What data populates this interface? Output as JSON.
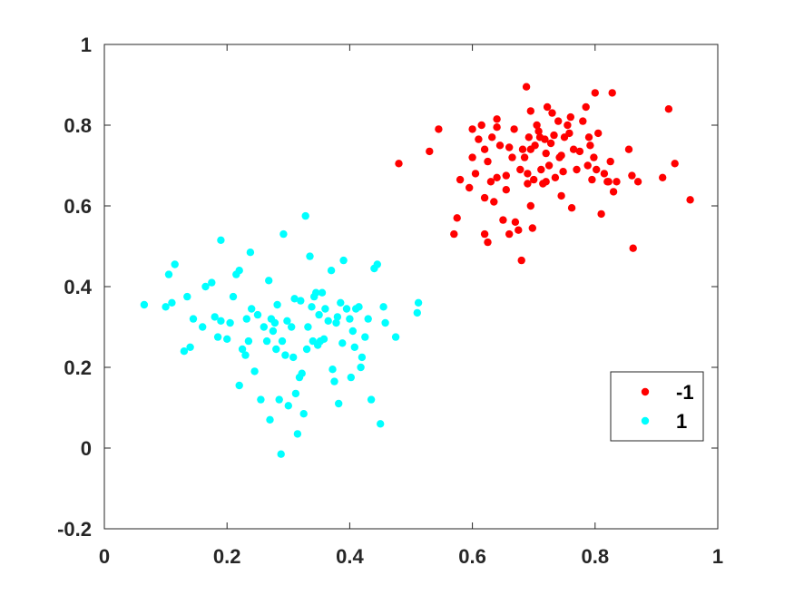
{
  "chart_data": {
    "type": "scatter",
    "xlim": [
      0,
      1
    ],
    "ylim": [
      -0.2,
      1
    ],
    "xticks": [
      "0",
      "0.2",
      "0.4",
      "0.6",
      "0.8",
      "1"
    ],
    "yticks": [
      "-0.2",
      "0",
      "0.2",
      "0.4",
      "0.6",
      "0.8",
      "1"
    ],
    "grid": false,
    "legend_position": "bottom-right",
    "series": [
      {
        "name": "-1",
        "color": "#ff0000",
        "points": [
          [
            0.48,
            0.705
          ],
          [
            0.53,
            0.735
          ],
          [
            0.545,
            0.79
          ],
          [
            0.57,
            0.53
          ],
          [
            0.575,
            0.57
          ],
          [
            0.58,
            0.665
          ],
          [
            0.595,
            0.645
          ],
          [
            0.6,
            0.72
          ],
          [
            0.6,
            0.79
          ],
          [
            0.605,
            0.68
          ],
          [
            0.61,
            0.765
          ],
          [
            0.615,
            0.8
          ],
          [
            0.62,
            0.74
          ],
          [
            0.62,
            0.62
          ],
          [
            0.62,
            0.53
          ],
          [
            0.625,
            0.51
          ],
          [
            0.625,
            0.71
          ],
          [
            0.63,
            0.66
          ],
          [
            0.632,
            0.77
          ],
          [
            0.635,
            0.61
          ],
          [
            0.64,
            0.795
          ],
          [
            0.64,
            0.815
          ],
          [
            0.645,
            0.75
          ],
          [
            0.65,
            0.565
          ],
          [
            0.655,
            0.675
          ],
          [
            0.66,
            0.745
          ],
          [
            0.66,
            0.53
          ],
          [
            0.665,
            0.72
          ],
          [
            0.668,
            0.79
          ],
          [
            0.67,
            0.56
          ],
          [
            0.675,
            0.54
          ],
          [
            0.678,
            0.69
          ],
          [
            0.68,
            0.465
          ],
          [
            0.682,
            0.74
          ],
          [
            0.685,
            0.72
          ],
          [
            0.688,
            0.895
          ],
          [
            0.69,
            0.68
          ],
          [
            0.69,
            0.655
          ],
          [
            0.692,
            0.77
          ],
          [
            0.695,
            0.835
          ],
          [
            0.695,
            0.6
          ],
          [
            0.698,
            0.545
          ],
          [
            0.7,
            0.665
          ],
          [
            0.702,
            0.75
          ],
          [
            0.705,
            0.8
          ],
          [
            0.708,
            0.785
          ],
          [
            0.71,
            0.77
          ],
          [
            0.712,
            0.69
          ],
          [
            0.715,
            0.655
          ],
          [
            0.718,
            0.765
          ],
          [
            0.72,
            0.66
          ],
          [
            0.722,
            0.845
          ],
          [
            0.725,
            0.7
          ],
          [
            0.728,
            0.755
          ],
          [
            0.73,
            0.83
          ],
          [
            0.733,
            0.775
          ],
          [
            0.735,
            0.67
          ],
          [
            0.74,
            0.81
          ],
          [
            0.742,
            0.72
          ],
          [
            0.745,
            0.725
          ],
          [
            0.748,
            0.685
          ],
          [
            0.75,
            0.77
          ],
          [
            0.755,
            0.8
          ],
          [
            0.758,
            0.78
          ],
          [
            0.76,
            0.82
          ],
          [
            0.762,
            0.595
          ],
          [
            0.765,
            0.74
          ],
          [
            0.77,
            0.69
          ],
          [
            0.775,
            0.735
          ],
          [
            0.78,
            0.81
          ],
          [
            0.785,
            0.845
          ],
          [
            0.788,
            0.7
          ],
          [
            0.79,
            0.77
          ],
          [
            0.792,
            0.75
          ],
          [
            0.795,
            0.665
          ],
          [
            0.798,
            0.72
          ],
          [
            0.8,
            0.88
          ],
          [
            0.802,
            0.69
          ],
          [
            0.805,
            0.78
          ],
          [
            0.81,
            0.58
          ],
          [
            0.815,
            0.68
          ],
          [
            0.82,
            0.66
          ],
          [
            0.822,
            0.66
          ],
          [
            0.825,
            0.71
          ],
          [
            0.828,
            0.88
          ],
          [
            0.83,
            0.635
          ],
          [
            0.835,
            0.66
          ],
          [
            0.855,
            0.74
          ],
          [
            0.86,
            0.675
          ],
          [
            0.862,
            0.495
          ],
          [
            0.87,
            0.66
          ],
          [
            0.91,
            0.67
          ],
          [
            0.92,
            0.84
          ],
          [
            0.93,
            0.705
          ],
          [
            0.955,
            0.615
          ],
          [
            0.64,
            0.67
          ],
          [
            0.72,
            0.73
          ],
          [
            0.695,
            0.74
          ],
          [
            0.655,
            0.64
          ],
          [
            0.745,
            0.625
          ]
        ]
      },
      {
        "name": "1",
        "color": "#00ffff",
        "points": [
          [
            0.065,
            0.355
          ],
          [
            0.1,
            0.35
          ],
          [
            0.105,
            0.43
          ],
          [
            0.11,
            0.36
          ],
          [
            0.115,
            0.455
          ],
          [
            0.13,
            0.24
          ],
          [
            0.135,
            0.375
          ],
          [
            0.14,
            0.25
          ],
          [
            0.145,
            0.32
          ],
          [
            0.16,
            0.3
          ],
          [
            0.165,
            0.4
          ],
          [
            0.175,
            0.41
          ],
          [
            0.18,
            0.325
          ],
          [
            0.185,
            0.275
          ],
          [
            0.19,
            0.515
          ],
          [
            0.19,
            0.315
          ],
          [
            0.2,
            0.27
          ],
          [
            0.205,
            0.31
          ],
          [
            0.21,
            0.375
          ],
          [
            0.215,
            0.43
          ],
          [
            0.22,
            0.155
          ],
          [
            0.22,
            0.44
          ],
          [
            0.225,
            0.245
          ],
          [
            0.23,
            0.23
          ],
          [
            0.232,
            0.32
          ],
          [
            0.235,
            0.265
          ],
          [
            0.238,
            0.485
          ],
          [
            0.24,
            0.345
          ],
          [
            0.245,
            0.19
          ],
          [
            0.25,
            0.33
          ],
          [
            0.255,
            0.12
          ],
          [
            0.26,
            0.3
          ],
          [
            0.265,
            0.265
          ],
          [
            0.268,
            0.415
          ],
          [
            0.27,
            0.07
          ],
          [
            0.272,
            0.32
          ],
          [
            0.275,
            0.29
          ],
          [
            0.278,
            0.31
          ],
          [
            0.28,
            0.245
          ],
          [
            0.282,
            0.355
          ],
          [
            0.285,
            0.12
          ],
          [
            0.288,
            -0.015
          ],
          [
            0.29,
            0.265
          ],
          [
            0.292,
            0.53
          ],
          [
            0.295,
            0.23
          ],
          [
            0.298,
            0.315
          ],
          [
            0.3,
            0.105
          ],
          [
            0.305,
            0.3
          ],
          [
            0.308,
            0.225
          ],
          [
            0.31,
            0.37
          ],
          [
            0.312,
            0.135
          ],
          [
            0.315,
            0.035
          ],
          [
            0.318,
            0.175
          ],
          [
            0.32,
            0.365
          ],
          [
            0.322,
            0.185
          ],
          [
            0.325,
            0.085
          ],
          [
            0.328,
            0.575
          ],
          [
            0.33,
            0.245
          ],
          [
            0.332,
            0.3
          ],
          [
            0.335,
            0.475
          ],
          [
            0.338,
            0.35
          ],
          [
            0.34,
            0.265
          ],
          [
            0.342,
            0.375
          ],
          [
            0.345,
            0.385
          ],
          [
            0.348,
            0.255
          ],
          [
            0.35,
            0.33
          ],
          [
            0.352,
            0.265
          ],
          [
            0.355,
            0.385
          ],
          [
            0.358,
            0.27
          ],
          [
            0.36,
            0.345
          ],
          [
            0.365,
            0.315
          ],
          [
            0.37,
            0.44
          ],
          [
            0.372,
            0.195
          ],
          [
            0.375,
            0.165
          ],
          [
            0.378,
            0.31
          ],
          [
            0.38,
            0.325
          ],
          [
            0.382,
            0.11
          ],
          [
            0.385,
            0.36
          ],
          [
            0.388,
            0.26
          ],
          [
            0.39,
            0.465
          ],
          [
            0.395,
            0.345
          ],
          [
            0.4,
            0.32
          ],
          [
            0.402,
            0.175
          ],
          [
            0.405,
            0.29
          ],
          [
            0.408,
            0.25
          ],
          [
            0.41,
            0.345
          ],
          [
            0.415,
            0.35
          ],
          [
            0.418,
            0.2
          ],
          [
            0.42,
            0.225
          ],
          [
            0.425,
            0.275
          ],
          [
            0.43,
            0.32
          ],
          [
            0.435,
            0.12
          ],
          [
            0.44,
            0.445
          ],
          [
            0.445,
            0.455
          ],
          [
            0.45,
            0.06
          ],
          [
            0.455,
            0.35
          ],
          [
            0.458,
            0.31
          ],
          [
            0.475,
            0.275
          ],
          [
            0.51,
            0.335
          ],
          [
            0.512,
            0.36
          ]
        ]
      }
    ]
  }
}
